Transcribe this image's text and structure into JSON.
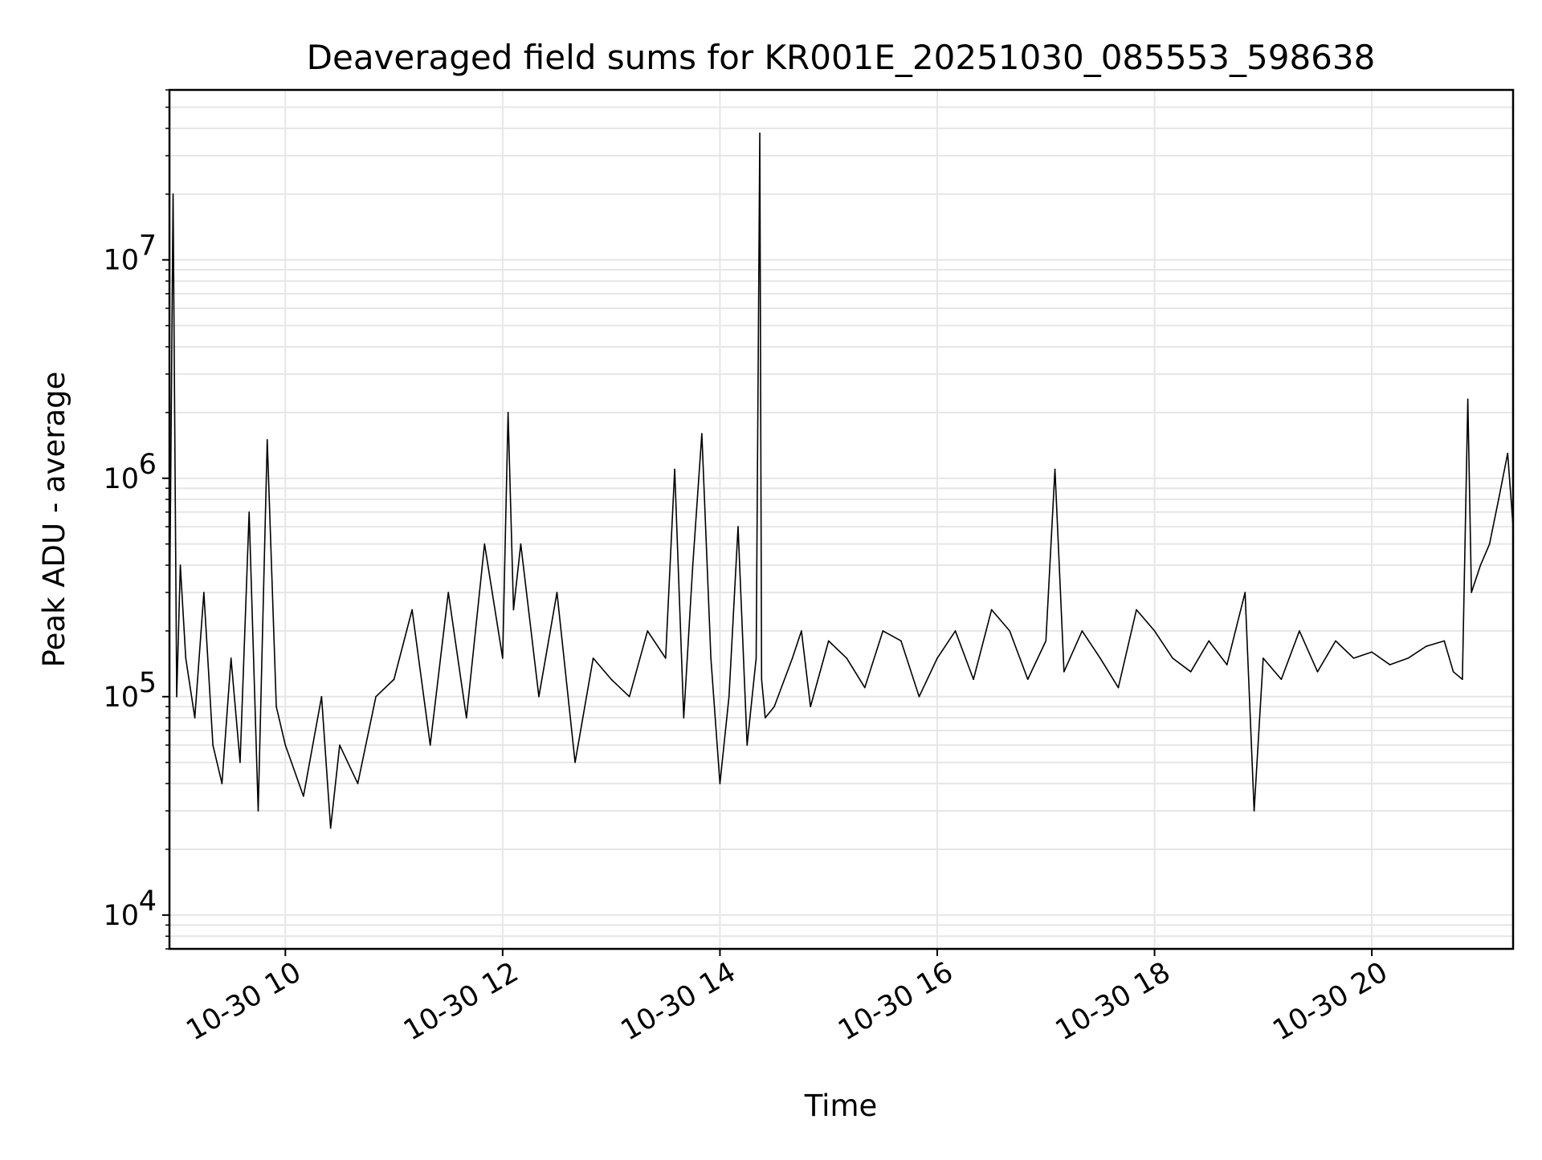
{
  "chart_data": {
    "type": "line",
    "title": "Deaveraged field sums for KR001E_20251030_085553_598638",
    "xlabel": "Time",
    "ylabel": "Peak ADU - average",
    "yscale": "log",
    "grid": true,
    "line_color": "#000000",
    "grid_color": "#e6e6e6",
    "xlim": [
      "2025-10-30 08:56",
      "2025-10-30 21:18"
    ],
    "ylim": [
      7000,
      60000000
    ],
    "x_ticks": [
      {
        "value": "2025-10-30 10:00",
        "label": "10-30 10"
      },
      {
        "value": "2025-10-30 12:00",
        "label": "10-30 12"
      },
      {
        "value": "2025-10-30 14:00",
        "label": "10-30 14"
      },
      {
        "value": "2025-10-30 16:00",
        "label": "10-30 16"
      },
      {
        "value": "2025-10-30 18:00",
        "label": "10-30 18"
      },
      {
        "value": "2025-10-30 20:00",
        "label": "10-30 20"
      }
    ],
    "y_ticks": [
      {
        "value": 10000,
        "base": "10",
        "exp": "4"
      },
      {
        "value": 100000,
        "base": "10",
        "exp": "5"
      },
      {
        "value": 1000000,
        "base": "10",
        "exp": "6"
      },
      {
        "value": 10000000,
        "base": "10",
        "exp": "7"
      }
    ],
    "series": [
      {
        "x": [
          "2025-10-30 08:56",
          "2025-10-30 08:58",
          "2025-10-30 09:00",
          "2025-10-30 09:02",
          "2025-10-30 09:05",
          "2025-10-30 09:10",
          "2025-10-30 09:15",
          "2025-10-30 09:20",
          "2025-10-30 09:25",
          "2025-10-30 09:30",
          "2025-10-30 09:35",
          "2025-10-30 09:40",
          "2025-10-30 09:45",
          "2025-10-30 09:50",
          "2025-10-30 09:55",
          "2025-10-30 10:00",
          "2025-10-30 10:10",
          "2025-10-30 10:20",
          "2025-10-30 10:25",
          "2025-10-30 10:30",
          "2025-10-30 10:40",
          "2025-10-30 10:50",
          "2025-10-30 11:00",
          "2025-10-30 11:10",
          "2025-10-30 11:20",
          "2025-10-30 11:30",
          "2025-10-30 11:40",
          "2025-10-30 11:50",
          "2025-10-30 12:00",
          "2025-10-30 12:03",
          "2025-10-30 12:06",
          "2025-10-30 12:10",
          "2025-10-30 12:20",
          "2025-10-30 12:30",
          "2025-10-30 12:40",
          "2025-10-30 12:50",
          "2025-10-30 13:00",
          "2025-10-30 13:10",
          "2025-10-30 13:20",
          "2025-10-30 13:30",
          "2025-10-30 13:35",
          "2025-10-30 13:40",
          "2025-10-30 13:45",
          "2025-10-30 13:50",
          "2025-10-30 13:55",
          "2025-10-30 14:00",
          "2025-10-30 14:05",
          "2025-10-30 14:10",
          "2025-10-30 14:15",
          "2025-10-30 14:20",
          "2025-10-30 14:22",
          "2025-10-30 14:23",
          "2025-10-30 14:25",
          "2025-10-30 14:30",
          "2025-10-30 14:40",
          "2025-10-30 14:45",
          "2025-10-30 14:50",
          "2025-10-30 15:00",
          "2025-10-30 15:10",
          "2025-10-30 15:20",
          "2025-10-30 15:30",
          "2025-10-30 15:40",
          "2025-10-30 15:50",
          "2025-10-30 16:00",
          "2025-10-30 16:10",
          "2025-10-30 16:20",
          "2025-10-30 16:30",
          "2025-10-30 16:40",
          "2025-10-30 16:50",
          "2025-10-30 17:00",
          "2025-10-30 17:05",
          "2025-10-30 17:10",
          "2025-10-30 17:20",
          "2025-10-30 17:30",
          "2025-10-30 17:40",
          "2025-10-30 17:50",
          "2025-10-30 18:00",
          "2025-10-30 18:10",
          "2025-10-30 18:20",
          "2025-10-30 18:30",
          "2025-10-30 18:40",
          "2025-10-30 18:50",
          "2025-10-30 18:55",
          "2025-10-30 19:00",
          "2025-10-30 19:10",
          "2025-10-30 19:20",
          "2025-10-30 19:30",
          "2025-10-30 19:40",
          "2025-10-30 19:50",
          "2025-10-30 20:00",
          "2025-10-30 20:10",
          "2025-10-30 20:20",
          "2025-10-30 20:30",
          "2025-10-30 20:40",
          "2025-10-30 20:45",
          "2025-10-30 20:50",
          "2025-10-30 20:53",
          "2025-10-30 20:55",
          "2025-10-30 21:00",
          "2025-10-30 21:05",
          "2025-10-30 21:10",
          "2025-10-30 21:15",
          "2025-10-30 21:18"
        ],
        "y": [
          200000,
          20000000,
          100000,
          400000,
          150000,
          80000,
          300000,
          60000,
          40000,
          150000,
          50000,
          700000,
          30000,
          1500000,
          90000,
          60000,
          35000,
          100000,
          25000,
          60000,
          40000,
          100000,
          120000,
          250000,
          60000,
          300000,
          80000,
          500000,
          150000,
          2000000,
          250000,
          500000,
          100000,
          300000,
          50000,
          150000,
          120000,
          100000,
          200000,
          150000,
          1100000,
          80000,
          400000,
          1600000,
          150000,
          40000,
          100000,
          600000,
          60000,
          150000,
          38000000,
          120000,
          80000,
          90000,
          150000,
          200000,
          90000,
          180000,
          150000,
          110000,
          200000,
          180000,
          100000,
          150000,
          200000,
          120000,
          250000,
          200000,
          120000,
          180000,
          1100000,
          130000,
          200000,
          150000,
          110000,
          250000,
          200000,
          150000,
          130000,
          180000,
          140000,
          300000,
          30000,
          150000,
          120000,
          200000,
          130000,
          180000,
          150000,
          160000,
          140000,
          150000,
          170000,
          180000,
          130000,
          120000,
          2300000,
          300000,
          400000,
          500000,
          800000,
          1300000,
          600000
        ]
      }
    ]
  }
}
